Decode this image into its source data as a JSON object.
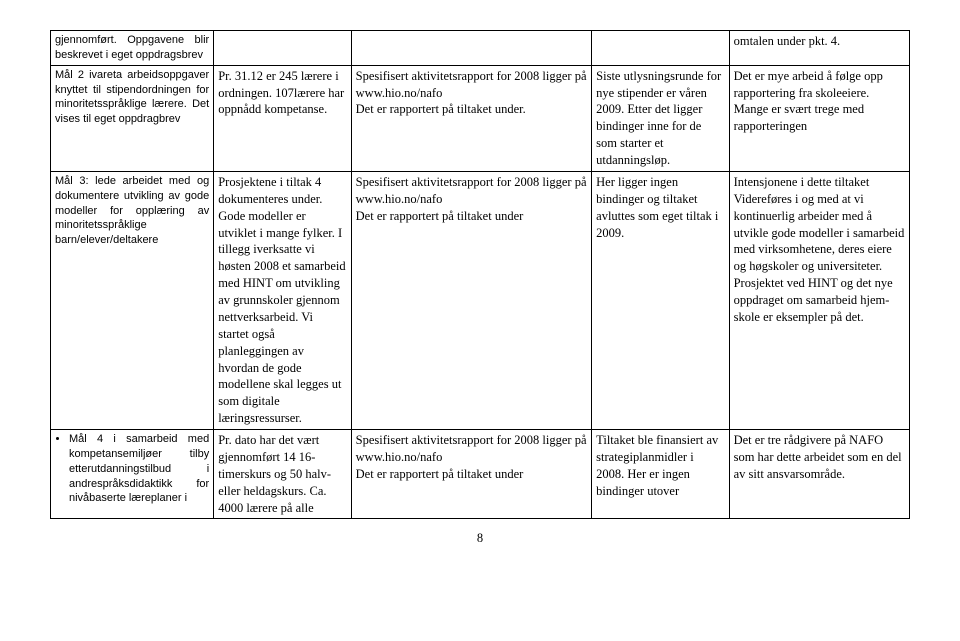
{
  "rows": [
    {
      "c1": "gjennomført. Oppgavene blir beskrevet i eget oppdragsbrev",
      "c2": "",
      "c3": "",
      "c4": "",
      "c5": "omtalen under pkt. 4."
    },
    {
      "c1": "Mål 2 ivareta arbeidsoppgaver knyttet til stipendordningen for minoritetsspråklige lærere. Det vises til eget oppdragbrev",
      "c2": "Pr. 31.12 er 245 lærere i ordningen. 107lærere har oppnådd kompetanse.",
      "c3": "Spesifisert aktivitetsrapport for 2008 ligger på www.hio.no/nafo\nDet er rapportert på tiltaket under.",
      "c4": "Siste utlysningsrunde for nye stipender er våren 2009. Etter det ligger bindinger inne for de som starter et utdanningsløp.",
      "c5": "Det er mye arbeid å følge opp rapportering fra skoleeiere. Mange er svært trege med rapporteringen"
    },
    {
      "c1": "Mål 3: lede arbeidet med og dokumentere utvikling av gode modeller for opplæring av minoritetsspråklige barn/elever/deltakere",
      "c2": "Prosjektene i tiltak 4 dokumenteres under. Gode modeller er utviklet i mange fylker. I tillegg iverksatte vi høsten 2008 et samarbeid med HINT om utvikling av grunnskoler gjennom nettverksarbeid. Vi startet også planleggingen av hvordan de gode modellene skal legges ut som digitale læringsressurser.",
      "c3": "Spesifisert aktivitetsrapport for 2008 ligger på www.hio.no/nafo\nDet er rapportert på tiltaket under",
      "c4": "Her ligger ingen bindinger og tiltaket avluttes som eget tiltak i 2009.",
      "c5": "Intensjonene i dette tiltaket Videreføres i og med at vi kontinuerlig arbeider med å utvikle gode modeller i samarbeid med virksomhetene, deres eiere og høgskoler og universiteter. Prosjektet ved HINT og det nye oppdraget om samarbeid hjem-skole er eksempler på det."
    },
    {
      "c1_bullet": "Mål 4 i samarbeid med kompetansemiljøer tilby etterutdanningstilbud i andrespråksdidaktikk for nivåbaserte læreplaner i",
      "c2": "Pr. dato har det vært gjennomført 14 16-timerskurs og 50 halv- eller heldagskurs. Ca. 4000 lærere på alle",
      "c3": "Spesifisert aktivitetsrapport for 2008 ligger på www.hio.no/nafo\nDet er rapportert på tiltaket under",
      "c4": "Tiltaket ble finansiert av strategiplanmidler i 2008. Her er ingen bindinger utover",
      "c5": "Det er tre rådgivere på NAFO som har dette arbeidet som en del av sitt ansvarsområde."
    }
  ],
  "page_number": "8"
}
